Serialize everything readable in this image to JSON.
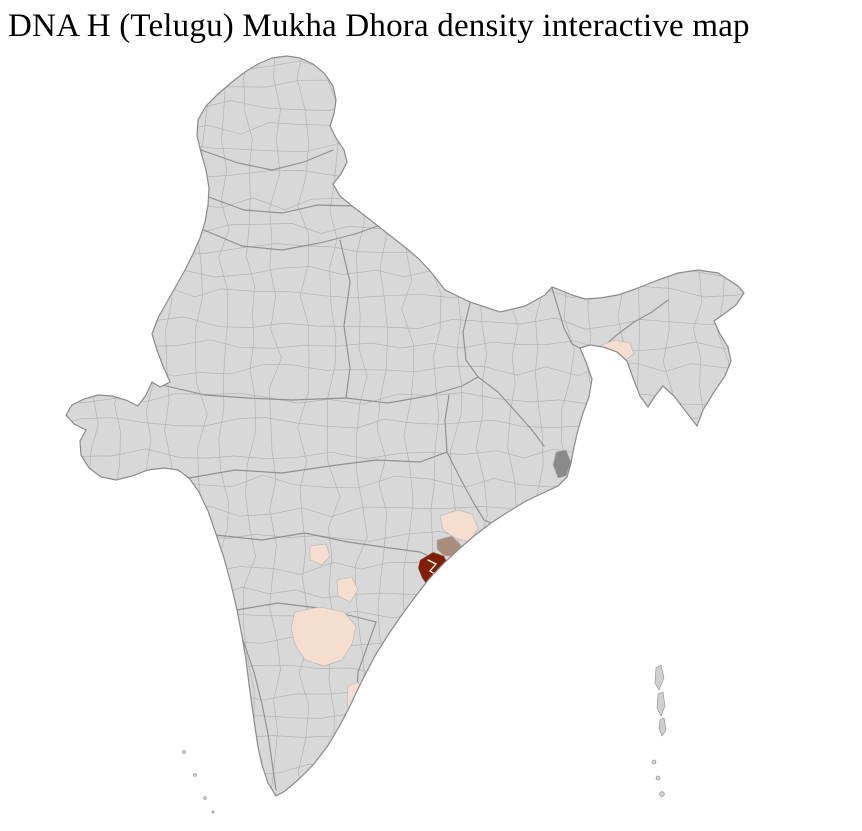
{
  "title": "DNA H (Telugu) Mukha Dhora density interactive map",
  "map": {
    "region": "India",
    "colors": {
      "background": "#ffffff",
      "base_fill": "#d8d8d8",
      "district_border": "#b3b3b3",
      "state_border": "#8f8f8f",
      "outline": "#8a8a8a",
      "island_fill": "#cfcfcf",
      "density_high": "#801f04",
      "density_mid": "#a98e7e",
      "density_low": "#f5ddd0",
      "density_nodata": "#8a8a8a",
      "inner_boundary": "#ffffff"
    }
  }
}
